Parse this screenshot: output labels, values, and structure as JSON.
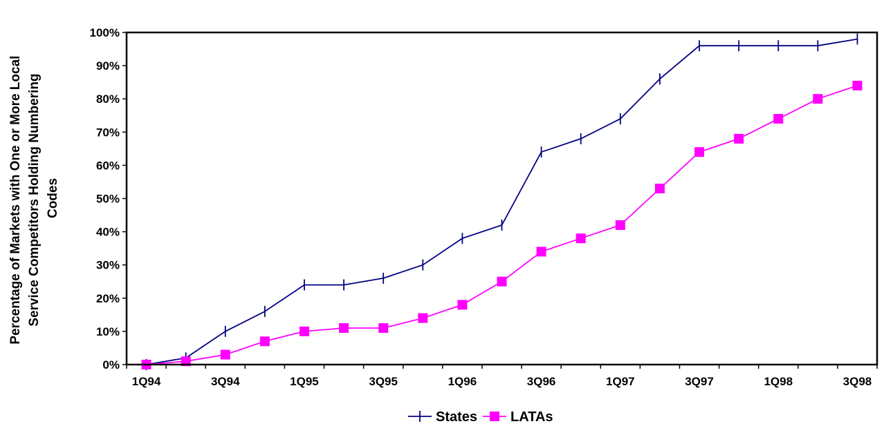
{
  "chart_data": {
    "type": "line",
    "title": "",
    "xlabel": "",
    "ylabel_lines": [
      "Percentage of Markets with One or More Local",
      "Service Competitors Holding Numbering",
      "Codes"
    ],
    "x": [
      "1Q94",
      "2Q94",
      "3Q94",
      "4Q94",
      "1Q95",
      "2Q95",
      "3Q95",
      "4Q95",
      "1Q96",
      "2Q96",
      "3Q96",
      "4Q96",
      "1Q97",
      "2Q97",
      "3Q97",
      "4Q97",
      "1Q98",
      "2Q98",
      "3Q98"
    ],
    "x_tick_labels": [
      "1Q94",
      "3Q94",
      "1Q95",
      "3Q95",
      "1Q96",
      "3Q96",
      "1Q97",
      "3Q97",
      "1Q98",
      "3Q98"
    ],
    "ylim": [
      0,
      100
    ],
    "y_tick_labels": [
      "0%",
      "10%",
      "20%",
      "30%",
      "40%",
      "50%",
      "60%",
      "70%",
      "80%",
      "90%",
      "100%"
    ],
    "grid": false,
    "legend_position": "bottom",
    "series": [
      {
        "name": "States",
        "color": "#000080",
        "marker": "vertical-tick",
        "values": [
          0,
          2,
          10,
          16,
          24,
          24,
          26,
          30,
          38,
          42,
          64,
          68,
          74,
          86,
          96,
          96,
          96,
          96,
          98
        ]
      },
      {
        "name": "LATAs",
        "color": "#ff00ff",
        "marker": "square",
        "values": [
          0,
          1,
          3,
          7,
          10,
          11,
          11,
          14,
          18,
          25,
          34,
          38,
          42,
          53,
          64,
          68,
          74,
          80,
          84
        ]
      }
    ]
  }
}
